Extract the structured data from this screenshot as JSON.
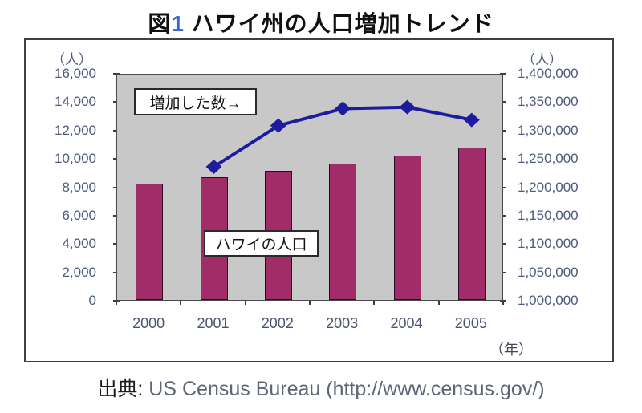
{
  "title": {
    "figure_prefix": "図",
    "figure_number": "1",
    "text": " ハワイ州の人口増加トレンド"
  },
  "chart_data": {
    "type": "combo-bar-line",
    "categories": [
      "2000",
      "2001",
      "2002",
      "2003",
      "2004",
      "2005"
    ],
    "series": [
      {
        "name": "ハワイの人口",
        "type": "bar",
        "axis": "right",
        "color": "#a02c68",
        "values": [
          1205000,
          1216000,
          1228000,
          1240000,
          1254000,
          1268000
        ]
      },
      {
        "name": "増加した数",
        "type": "line",
        "axis": "left",
        "color": "#1c1c9e",
        "marker": "diamond",
        "values": [
          null,
          9500,
          12400,
          13600,
          13700,
          12800
        ]
      }
    ],
    "left_axis": {
      "unit": "（人）",
      "min": 0,
      "max": 16000,
      "step": 2000,
      "tick_labels": [
        "16,000",
        "14,000",
        "12,000",
        "10,000",
        "8,000",
        "6,000",
        "4,000",
        "2,000",
        "0"
      ]
    },
    "right_axis": {
      "unit": "（人）",
      "min": 1000000,
      "max": 1400000,
      "step": 50000,
      "tick_labels": [
        "1,400,000",
        "1,350,000",
        "1,300,000",
        "1,250,000",
        "1,200,000",
        "1,150,000",
        "1,100,000",
        "1,050,000",
        "1,000,000"
      ]
    },
    "x_axis": {
      "unit": "（年）"
    },
    "annotations": [
      {
        "text": "増加した数→",
        "target": "line-series"
      },
      {
        "text": "ハワイの人口",
        "target": "bar-series"
      }
    ],
    "plot_background": "#c8c8c8",
    "grid": "off",
    "legend": "none"
  },
  "caption": {
    "label": "出典:",
    "source": " US Census Bureau (http://www.census.gov/)"
  }
}
